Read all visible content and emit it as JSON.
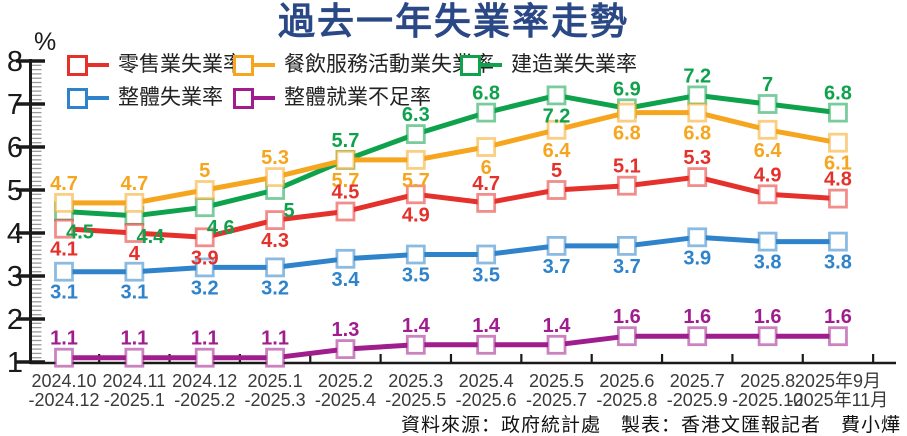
{
  "title": "過去一年失業率走勢",
  "footer": {
    "text": "資料來源：政府統計處　製表：香港文匯報記者　費小燁"
  },
  "colors": {
    "title": "#2a4886",
    "axis": "#1a1a1a",
    "minor_tick": "#9a9a9a",
    "x_label": "#3a3a3a",
    "legend_text": "#222222"
  },
  "chart_data": {
    "type": "line",
    "title": "過去一年失業率走勢",
    "y_unit": "%",
    "ylim": [
      1,
      8
    ],
    "y_ticks": [
      1,
      2,
      3,
      4,
      5,
      6,
      7,
      8
    ],
    "grid": false,
    "legend_position": "top",
    "categories": [
      {
        "line1": "2024.10",
        "line2": "-2024.12"
      },
      {
        "line1": "2024.11",
        "line2": "-2025.1"
      },
      {
        "line1": "2024.12",
        "line2": "-2025.2"
      },
      {
        "line1": "2025.1",
        "line2": "-2025.3"
      },
      {
        "line1": "2025.2",
        "line2": "-2025.4"
      },
      {
        "line1": "2025.3",
        "line2": "-2025.5"
      },
      {
        "line1": "2025.4",
        "line2": "-2025.6"
      },
      {
        "line1": "2025.5",
        "line2": "-2025.7"
      },
      {
        "line1": "2025.6",
        "line2": "-2025.8"
      },
      {
        "line1": "2025.7",
        "line2": "-2025.9"
      },
      {
        "line1": "2025.8",
        "line2": "-2025.10"
      },
      {
        "line1": "2025年9月",
        "line2": "-2025年11月"
      }
    ],
    "series": [
      {
        "name": "零售業失業率",
        "color": "#e5312b",
        "values": [
          4.1,
          4,
          3.9,
          4.3,
          4.5,
          4.9,
          4.7,
          5,
          5.1,
          5.3,
          4.9,
          4.8
        ],
        "label_pos": [
          "b",
          "b",
          "b",
          "b",
          "a",
          "b",
          "a",
          "a",
          "a",
          "a",
          "a",
          "a"
        ],
        "label_dx": [
          0,
          0,
          0,
          0,
          0,
          0,
          0,
          0,
          0,
          0,
          0,
          0
        ]
      },
      {
        "name": "餐飲服務活動業失業率",
        "color": "#f6a51e",
        "values": [
          4.7,
          4.7,
          5,
          5.3,
          5.7,
          5.7,
          6,
          6.4,
          6.8,
          6.8,
          6.4,
          6.1
        ],
        "label_pos": [
          "a",
          "a",
          "a",
          "a",
          "b",
          "b",
          "b",
          "b",
          "b",
          "b",
          "b",
          "b"
        ],
        "label_dx": [
          0,
          0,
          0,
          0,
          0,
          0,
          0,
          0,
          0,
          0,
          0,
          0
        ]
      },
      {
        "name": "建造業失業率",
        "color": "#0fa24c",
        "values": [
          4.5,
          4.4,
          4.6,
          5,
          5.7,
          6.3,
          6.8,
          7.2,
          6.9,
          7.2,
          7,
          6.8
        ],
        "label_pos": [
          "b",
          "b",
          "b",
          "b",
          "a",
          "a",
          "a",
          "b",
          "a",
          "a",
          "a",
          "a"
        ],
        "label_dx": [
          16,
          16,
          16,
          14,
          0,
          0,
          0,
          0,
          0,
          0,
          0,
          0
        ]
      },
      {
        "name": "整體失業率",
        "color": "#2e83cb",
        "values": [
          3.1,
          3.1,
          3.2,
          3.2,
          3.4,
          3.5,
          3.5,
          3.7,
          3.7,
          3.9,
          3.8,
          3.8
        ],
        "label_pos": [
          "b",
          "b",
          "b",
          "b",
          "b",
          "b",
          "b",
          "b",
          "b",
          "b",
          "b",
          "b"
        ],
        "label_dx": [
          0,
          0,
          0,
          0,
          0,
          0,
          0,
          0,
          0,
          0,
          0,
          0
        ]
      },
      {
        "name": "整體就業不足率",
        "color": "#a01d8d",
        "values": [
          1.1,
          1.1,
          1.1,
          1.1,
          1.3,
          1.4,
          1.4,
          1.4,
          1.6,
          1.6,
          1.6,
          1.6
        ],
        "label_pos": [
          "a",
          "a",
          "a",
          "a",
          "a",
          "a",
          "a",
          "a",
          "a",
          "a",
          "a",
          "a"
        ],
        "label_dx": [
          0,
          0,
          0,
          0,
          0,
          0,
          0,
          0,
          0,
          0,
          0,
          0
        ]
      }
    ]
  }
}
